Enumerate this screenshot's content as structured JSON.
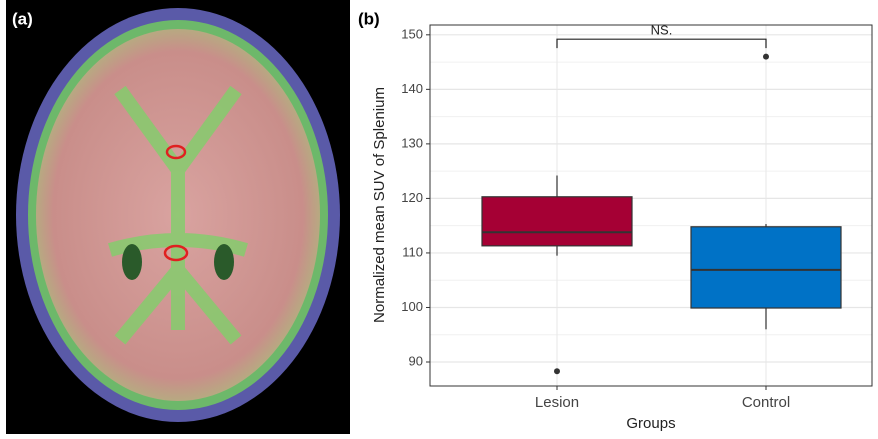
{
  "chart_data": [
    {
      "type": "image",
      "panel_label": "(a)"
    },
    {
      "type": "box",
      "panel_label": "(b)",
      "x_label": "Groups",
      "y_label": "Normalized mean SUV of Splenium",
      "categories": [
        "Lesion",
        "Control"
      ],
      "boxes": [
        {
          "low": 109.5,
          "q1": 111.3,
          "median": 113.8,
          "q3": 120.3,
          "high": 124.2,
          "outliers": [
            88.3
          ],
          "color": "#a50034"
        },
        {
          "low": 96,
          "q1": 99.9,
          "median": 106.9,
          "q3": 114.8,
          "high": 115.3,
          "outliers": [
            146
          ],
          "color": "#0072c6"
        }
      ],
      "ylim": [
        85.6,
        151.8
      ],
      "yticks": [
        90,
        100,
        110,
        120,
        130,
        140,
        150
      ],
      "minor_yticks": [
        95,
        105,
        115,
        125,
        135,
        145
      ],
      "grid": true,
      "annotation": {
        "text": "NS.",
        "y": 149.2
      }
    }
  ]
}
